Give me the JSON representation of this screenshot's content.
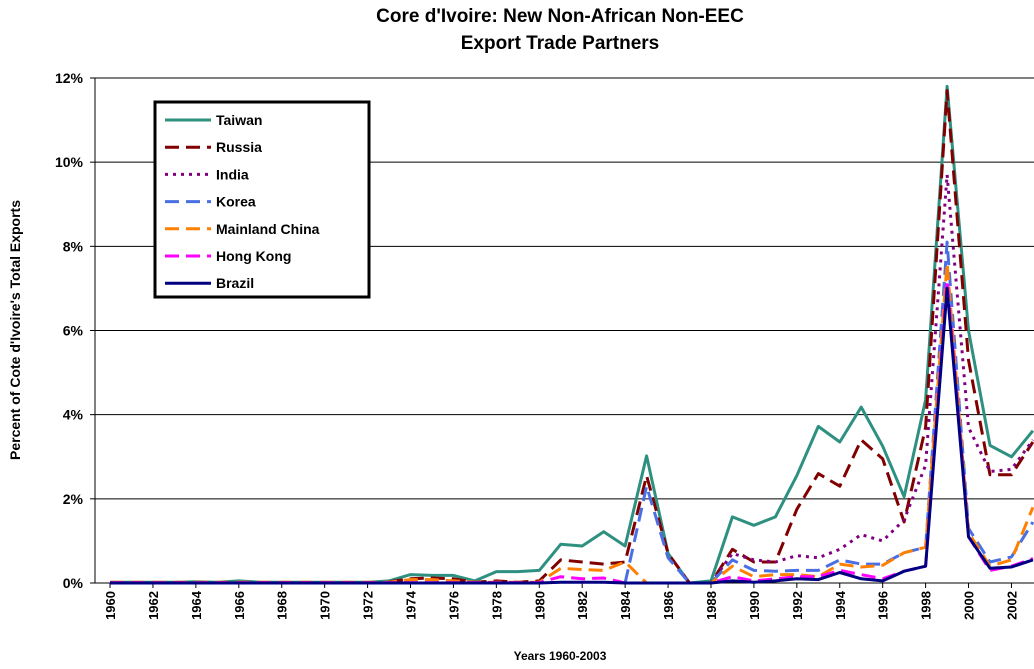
{
  "chart_data": {
    "type": "line",
    "title": [
      "Core d'Ivoire: New Non-African Non-EEC",
      "Export Trade Partners"
    ],
    "x_label": "Years 1960-2003",
    "y_label": "Percent of Cote d'Ivoire's Total Exports",
    "x": [
      1960,
      1961,
      1962,
      1963,
      1964,
      1965,
      1966,
      1967,
      1968,
      1969,
      1970,
      1971,
      1972,
      1973,
      1974,
      1975,
      1976,
      1977,
      1978,
      1979,
      1980,
      1981,
      1982,
      1983,
      1984,
      1985,
      1986,
      1987,
      1988,
      1989,
      1990,
      1991,
      1992,
      1993,
      1994,
      1995,
      1996,
      1997,
      1998,
      1999,
      2000,
      2001,
      2002,
      2003
    ],
    "xlim": [
      1959.3,
      2003.05
    ],
    "xticks": [
      1960,
      1962,
      1964,
      1966,
      1968,
      1970,
      1972,
      1974,
      1976,
      1978,
      1980,
      1982,
      1984,
      1986,
      1988,
      1990,
      1992,
      1994,
      1996,
      1998,
      2000,
      2002
    ],
    "ylim": [
      0,
      12
    ],
    "yticks": [
      {
        "value": 0,
        "label": "0%"
      },
      {
        "value": 2,
        "label": "2%"
      },
      {
        "value": 4,
        "label": "4%"
      },
      {
        "value": 6,
        "label": "6%"
      },
      {
        "value": 8,
        "label": "8%"
      },
      {
        "value": 10,
        "label": "10%"
      },
      {
        "value": 12,
        "label": "12%"
      }
    ],
    "grid": true,
    "legend": "upper left",
    "series": [
      {
        "name": "Taiwan",
        "color": "#2e9080",
        "dash": "solid",
        "values": [
          0.02,
          0.02,
          0.02,
          0.02,
          0.03,
          0.02,
          0.05,
          0.02,
          0.02,
          0.02,
          0.02,
          0.02,
          0.02,
          0.05,
          0.2,
          0.18,
          0.18,
          0.05,
          0.27,
          0.27,
          0.3,
          0.92,
          0.88,
          1.22,
          0.88,
          3.02,
          0.7,
          0,
          0.05,
          1.57,
          1.37,
          1.57,
          2.55,
          3.72,
          3.35,
          4.18,
          3.25,
          2.05,
          4.35,
          11.8,
          6.0,
          3.27,
          3.0,
          3.62
        ]
      },
      {
        "name": "Russia",
        "color": "#800000",
        "dash": "dashed",
        "values": [
          null,
          null,
          null,
          null,
          null,
          null,
          null,
          null,
          null,
          null,
          null,
          null,
          null,
          0.03,
          0.1,
          0.12,
          0.1,
          0.02,
          0.05,
          0.02,
          0.05,
          0.55,
          0.5,
          0.45,
          0.5,
          2.55,
          0.7,
          0,
          0,
          0.8,
          0.5,
          0.5,
          1.75,
          2.6,
          2.3,
          3.4,
          2.95,
          1.45,
          3.7,
          11.7,
          5.3,
          2.57,
          2.57,
          3.35
        ]
      },
      {
        "name": "India",
        "color": "#800080",
        "dash": "dotted",
        "values": [
          null,
          null,
          null,
          null,
          null,
          null,
          null,
          null,
          null,
          null,
          null,
          null,
          null,
          null,
          null,
          null,
          null,
          null,
          null,
          null,
          null,
          null,
          null,
          null,
          null,
          null,
          null,
          null,
          0,
          0.7,
          0.55,
          0.5,
          0.65,
          0.6,
          0.8,
          1.15,
          1.0,
          1.5,
          2.8,
          9.7,
          3.7,
          2.65,
          2.7,
          3.4
        ]
      },
      {
        "name": "Korea",
        "color": "#4a6fe3",
        "dash": "dashed",
        "values": [
          null,
          null,
          null,
          null,
          null,
          null,
          null,
          null,
          null,
          null,
          null,
          null,
          null,
          null,
          null,
          null,
          null,
          null,
          null,
          null,
          null,
          null,
          null,
          null,
          0,
          2.3,
          0.6,
          0,
          0,
          0.55,
          0.3,
          0.28,
          0.3,
          0.3,
          0.55,
          0.45,
          0.45,
          0.72,
          0.85,
          8.1,
          1.3,
          0.5,
          0.62,
          1.45
        ]
      },
      {
        "name": "Mainland China",
        "color": "#ff8000",
        "dash": "dashed",
        "values": [
          0.02,
          0.02,
          0.02,
          0.02,
          0.02,
          0.02,
          0.02,
          0.02,
          0.02,
          0.02,
          0.02,
          0.02,
          0.02,
          0.02,
          0.08,
          0.08,
          0.05,
          0.02,
          0.02,
          0.02,
          0.02,
          0.35,
          0.32,
          0.3,
          0.5,
          0,
          0,
          0,
          0,
          0.4,
          0.15,
          0.2,
          0.2,
          0.15,
          0.45,
          0.38,
          0.42,
          0.72,
          0.85,
          7.6,
          1.2,
          0.4,
          0.55,
          1.8
        ]
      },
      {
        "name": "Hong Kong",
        "color": "#ff00ff",
        "dash": "dashed",
        "values": [
          0.01,
          0.01,
          0.01,
          0.01,
          0.01,
          0.01,
          0.01,
          0.01,
          0.01,
          0.01,
          0.01,
          0.01,
          0.01,
          0.01,
          0.01,
          0.01,
          0.01,
          0.01,
          0.01,
          0.01,
          0.01,
          0.15,
          0.1,
          0.12,
          0,
          0,
          0,
          0,
          0,
          0.15,
          0.05,
          0.1,
          0.15,
          0.15,
          0.3,
          0.2,
          0.1,
          0.28,
          0.4,
          7.2,
          1.1,
          0.3,
          0.4,
          0.58
        ]
      },
      {
        "name": "Brazil",
        "color": "#000080",
        "dash": "solid",
        "values": [
          0,
          0,
          0,
          0,
          0,
          0,
          0,
          0,
          0,
          0,
          0,
          0,
          0,
          0,
          0,
          0,
          0,
          0,
          0,
          0,
          0,
          0.02,
          0.02,
          0.02,
          0,
          0,
          0,
          0,
          0,
          0.05,
          0.02,
          0.05,
          0.1,
          0.08,
          0.25,
          0.1,
          0.05,
          0.28,
          0.4,
          7.0,
          1.1,
          0.35,
          0.38,
          0.55
        ]
      }
    ]
  }
}
